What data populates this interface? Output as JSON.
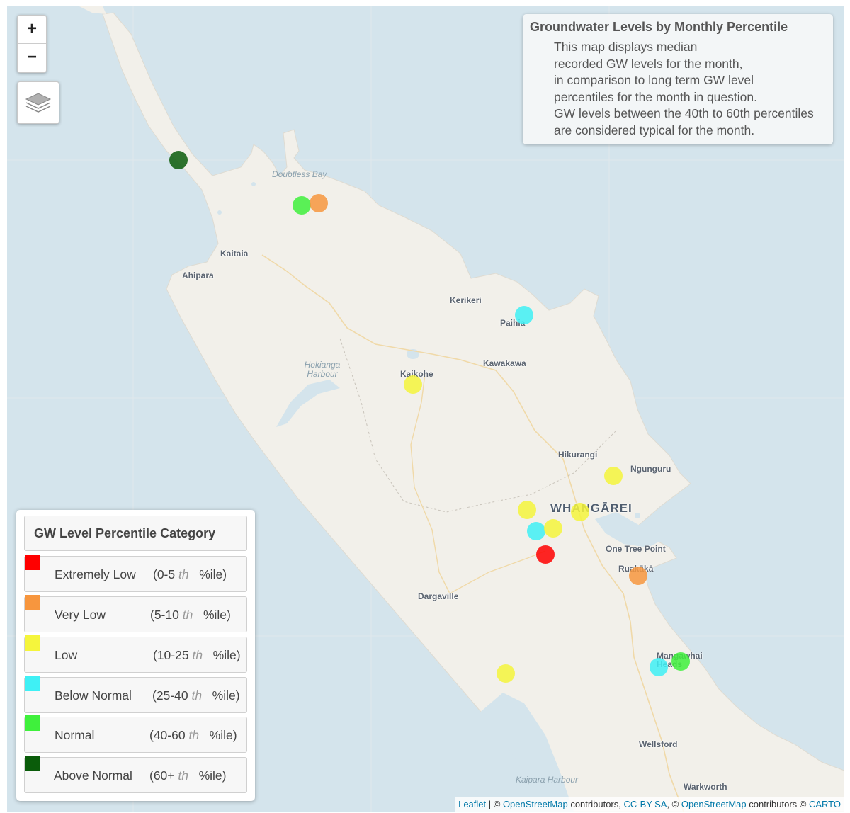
{
  "map": {
    "zoom_in_label": "+",
    "zoom_out_label": "−",
    "water_color": "#d4e4ec",
    "land_color": "#f2f0ea"
  },
  "info_panel": {
    "title": "Groundwater Levels by Monthly Percentile",
    "lines": [
      "This map displays median",
      "recorded GW levels for the month,",
      "in comparison to long term GW level",
      "percentiles for the month in question.",
      "GW levels between the 40th to 60th percentiles",
      "are considered typical for the month."
    ]
  },
  "places": [
    {
      "name": "Kaitaia"
    },
    {
      "name": "Ahipara"
    },
    {
      "name": "Kerikeri"
    },
    {
      "name": "Paihia"
    },
    {
      "name": "Kawakawa"
    },
    {
      "name": "Kaikohe"
    },
    {
      "name": "Hikurangi"
    },
    {
      "name": "Ngunguru"
    },
    {
      "name": "WHANGĀREI"
    },
    {
      "name": "One Tree Point"
    },
    {
      "name": "Ruakākā"
    },
    {
      "name": "Dargaville"
    },
    {
      "name": "Mangawhai Heads"
    },
    {
      "name": "Wellsford"
    },
    {
      "name": "Warkworth"
    }
  ],
  "water_labels": [
    {
      "name": "Doubtless Bay"
    },
    {
      "name": "Hokianga Harbour"
    },
    {
      "name": "Kaipara Harbour"
    }
  ],
  "categories": [
    {
      "key": "extremely_low",
      "label": "Extremely Low",
      "range_start": "(0-5",
      "th": "th",
      "range_end": "%ile)",
      "color": "#ff0000"
    },
    {
      "key": "very_low",
      "label": "Very Low",
      "range_start": "(5-10",
      "th": "th",
      "range_end": "%ile)",
      "color": "#f7963e"
    },
    {
      "key": "low",
      "label": "Low",
      "range_start": "(10-25",
      "th": "th",
      "range_end": "%ile)",
      "color": "#f5f53c"
    },
    {
      "key": "below_normal",
      "label": "Below Normal",
      "range_start": "(25-40",
      "th": "th",
      "range_end": "%ile)",
      "color": "#3ff0f5"
    },
    {
      "key": "normal",
      "label": "Normal",
      "range_start": "(40-60",
      "th": "th",
      "range_end": "%ile)",
      "color": "#3ff03c"
    },
    {
      "key": "above_normal",
      "label": "Above Normal",
      "range_start": "(60+",
      "th": "th",
      "range_end": "%ile)",
      "color": "#0a5c0a"
    }
  ],
  "legend": {
    "title": "GW Level Percentile Category"
  },
  "sites": [
    {
      "category": "above_normal"
    },
    {
      "category": "normal"
    },
    {
      "category": "very_low"
    },
    {
      "category": "below_normal"
    },
    {
      "category": "low"
    },
    {
      "category": "low"
    },
    {
      "category": "low"
    },
    {
      "category": "low"
    },
    {
      "category": "below_normal"
    },
    {
      "category": "low"
    },
    {
      "category": "extremely_low"
    },
    {
      "category": "very_low"
    },
    {
      "category": "normal"
    },
    {
      "category": "below_normal"
    },
    {
      "category": "low"
    }
  ],
  "attribution": {
    "leaflet": "Leaflet",
    "sep1": " | © ",
    "osm1": "OpenStreetMap",
    "contrib1": " contributors, ",
    "license": "CC-BY-SA",
    "sep2": ", © ",
    "osm2": "OpenStreetMap",
    "contrib2": " contributors © ",
    "carto": "CARTO"
  }
}
